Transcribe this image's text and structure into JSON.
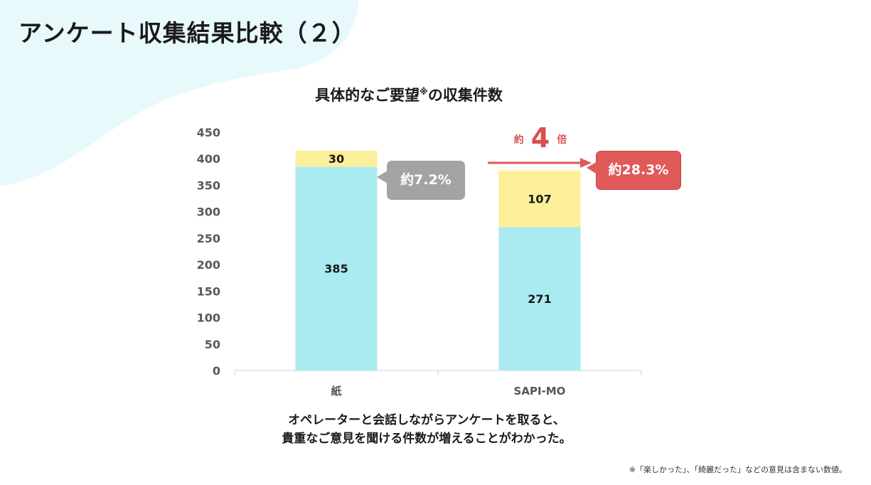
{
  "page": {
    "title": "アンケート収集結果比較（２）",
    "conclusion_line1": "オペレーターと会話しながらアンケートを取ると、",
    "conclusion_line2": "貴重なご意見を聞ける件数が増えることがわかった。",
    "footnote": "※「楽しかった」、「綺麗だった」などの意見は含まない数値。"
  },
  "annotations": {
    "paper_ratio": "約7.2%",
    "sapi_ratio": "約28.3%",
    "multiplier_prefix": "約",
    "multiplier_value": "4",
    "multiplier_suffix": "倍"
  },
  "colors": {
    "background_blob": "#e8f9fc",
    "bar_base": "#aaebf1",
    "bar_top": "#fdef9a",
    "callout_grey": "#a3a3a3",
    "callout_red": "#e05a5a",
    "arrow_red": "#e05a5a"
  },
  "chart_data": {
    "type": "bar",
    "stacked": true,
    "title_main": "具体的なご要望",
    "title_mark": "※",
    "title_rest": "の収集件数",
    "categories": [
      "紙",
      "SAPI-MO"
    ],
    "series": [
      {
        "values": [
          385,
          271
        ],
        "color": "#aaebf1"
      },
      {
        "values": [
          30,
          107
        ],
        "color": "#fdef9a"
      }
    ],
    "ylim": [
      0,
      450
    ],
    "yticks": [
      0,
      50,
      100,
      150,
      200,
      250,
      300,
      350,
      400,
      450
    ],
    "grid": false
  }
}
